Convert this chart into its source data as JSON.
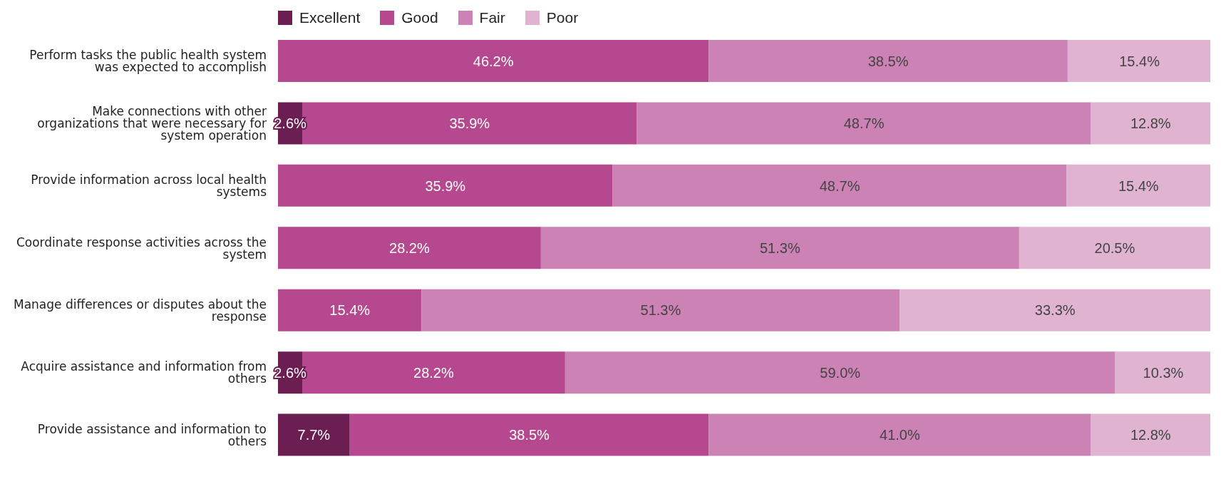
{
  "chart_data": {
    "type": "bar",
    "orientation": "horizontal",
    "stacked": true,
    "legend": "top left",
    "tick_labels": "y",
    "xlim": [
      0,
      100
    ],
    "categories": [
      "Perform tasks the public health system was expected to accomplish",
      "Make connections with other organizations that were necessary for system operation",
      "Provide information across local health systems",
      "Coordinate response activities across the system",
      "Manage differences or disputes about the response",
      "Acquire assistance and information from others",
      "Provide assistance and information to others"
    ],
    "series": [
      {
        "name": "Excellent",
        "color": "#6b1e52",
        "values": [
          null,
          2.6,
          null,
          null,
          null,
          2.6,
          7.7
        ],
        "value_labels": [
          null,
          "2.6%",
          null,
          null,
          null,
          "2.6%",
          "7.7%"
        ]
      },
      {
        "name": "Good",
        "color": "#b5488e",
        "values": [
          46.2,
          35.9,
          35.9,
          28.2,
          15.4,
          28.2,
          38.5
        ],
        "value_labels": [
          "46.2%",
          "35.9%",
          "35.9%",
          "28.2%",
          "15.4%",
          "28.2%",
          "38.5%"
        ]
      },
      {
        "name": "Fair",
        "color": "#cc82b5",
        "values": [
          38.5,
          48.7,
          48.7,
          51.3,
          51.3,
          59.0,
          41.0
        ],
        "value_labels": [
          "38.5%",
          "48.7%",
          "48.7%",
          "51.3%",
          "51.3%",
          "59.0%",
          "41.0%"
        ]
      },
      {
        "name": "Poor",
        "color": "#e0b3d1",
        "values": [
          15.4,
          12.8,
          15.4,
          20.5,
          33.3,
          10.3,
          12.8
        ],
        "value_labels": [
          "15.4%",
          "12.8%",
          "15.4%",
          "20.5%",
          "33.3%",
          "10.3%",
          "12.8%"
        ]
      }
    ]
  }
}
